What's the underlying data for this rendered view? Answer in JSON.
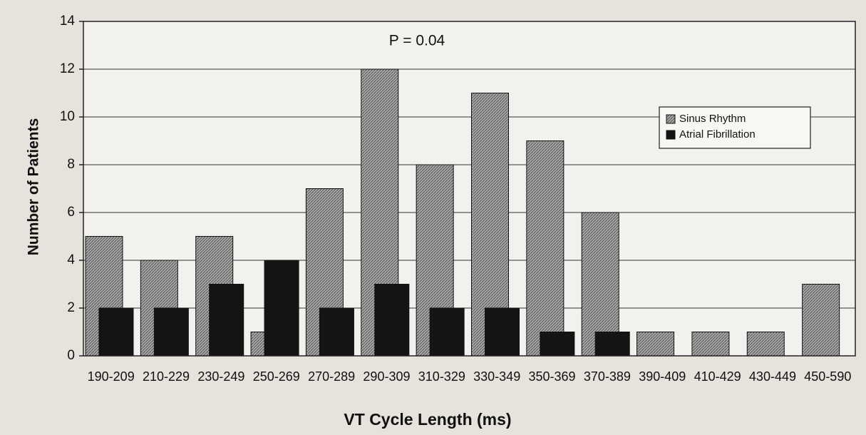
{
  "chart_data": {
    "type": "bar",
    "annotation": "P = 0.04",
    "x_label": "VT Cycle Length (ms)",
    "y_label": "Number of Patients",
    "categories": [
      "190-209",
      "210-229",
      "230-249",
      "250-269",
      "270-289",
      "290-309",
      "310-329",
      "330-349",
      "350-369",
      "370-389",
      "390-409",
      "410-429",
      "430-449",
      "450-590"
    ],
    "series": [
      {
        "name": "Sinus Rhythm",
        "color": "#a8a8a8",
        "values": [
          5,
          4,
          5,
          1,
          7,
          12,
          8,
          11,
          9,
          6,
          1,
          1,
          1,
          3
        ]
      },
      {
        "name": "Atrial Fibrillation",
        "color": "#141414",
        "values": [
          2,
          2,
          3,
          4,
          2,
          3,
          2,
          2,
          1,
          1,
          0,
          0,
          0,
          0
        ]
      }
    ],
    "ylim": [
      0,
      14
    ],
    "yticks": [
      0,
      2,
      4,
      6,
      8,
      10,
      12,
      14
    ],
    "grid": true,
    "legend": "upper right"
  }
}
